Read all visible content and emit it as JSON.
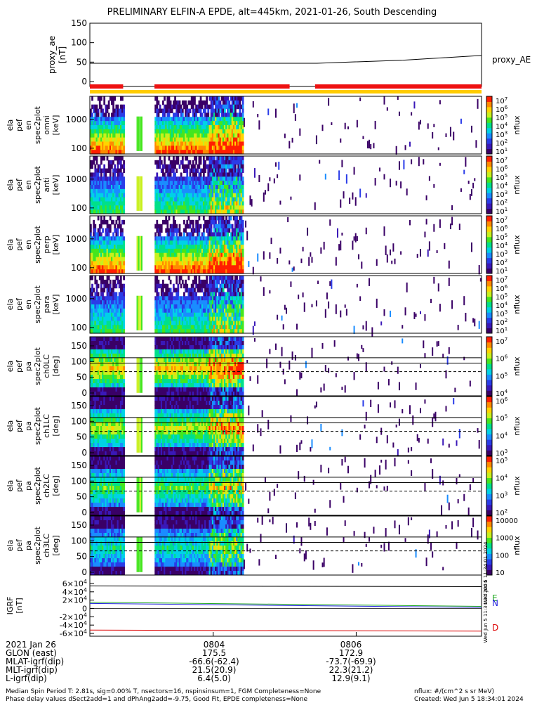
{
  "title": "PRELIMINARY ELFIN-A EPDE, alt=445km, 2021-01-26, South Descending",
  "proxy_panel": {
    "ylabel": "proxy_ae\n[nT]",
    "series_name": "proxy_AE",
    "yticks": [
      "150",
      "100",
      "50",
      "0"
    ]
  },
  "spectrogram_panels": [
    {
      "ylabel": "ela\npef\nen\nspec2plot\nomni\n[keV]",
      "yticks": [
        "1000",
        "100"
      ],
      "cbar_label": "nflux",
      "cbar_ticks": [
        "10^7",
        "10^6",
        "10^5",
        "10^4",
        "10^3",
        "10^2",
        "10^1"
      ]
    },
    {
      "ylabel": "ela\npef\nen\nspec2plot\nanti\n[keV]",
      "yticks": [
        "1000",
        "100"
      ],
      "cbar_label": "nflux",
      "cbar_ticks": [
        "10^7",
        "10^6",
        "10^5",
        "10^4",
        "10^3",
        "10^2",
        "10^1"
      ]
    },
    {
      "ylabel": "ela\npef\nen\nspec2plot\nperp\n[keV]",
      "yticks": [
        "1000",
        "100"
      ],
      "cbar_label": "nflux",
      "cbar_ticks": [
        "10^7",
        "10^6",
        "10^5",
        "10^4",
        "10^3",
        "10^2",
        "10^1"
      ]
    },
    {
      "ylabel": "ela\npef\nen\nspec2plot\npara\n[keV]",
      "yticks": [
        "1000",
        "100"
      ],
      "cbar_label": "nflux",
      "cbar_ticks": [
        "10^7",
        "10^6",
        "10^5",
        "10^4",
        "10^3",
        "10^2",
        "10^1"
      ]
    }
  ],
  "pitch_panels": [
    {
      "ylabel": "ela\npef\npa\nspec2plot\nch0LC\n[deg]",
      "yticks": [
        "150",
        "100",
        "50",
        "0"
      ],
      "cbar_label": "nflux",
      "cbar_ticks": [
        "10^7",
        "10^6",
        "10^5",
        "10^4"
      ]
    },
    {
      "ylabel": "ela\npef\npa\nspec2plot\nch1LC\n[deg]",
      "yticks": [
        "150",
        "100",
        "50",
        "0"
      ],
      "cbar_label": "nflux",
      "cbar_ticks": [
        "10^6",
        "10^5",
        "10^4",
        "10^3"
      ]
    },
    {
      "ylabel": "ela\npef\npa\nspec2plot\nch2LC\n[deg]",
      "yticks": [
        "150",
        "100",
        "50",
        "0"
      ],
      "cbar_label": "nflux",
      "cbar_ticks": [
        "10^5",
        "10^4",
        "10^3",
        "10^2"
      ]
    },
    {
      "ylabel": "ela\npef\npa\nspec2plot\nch3LC\n[deg]",
      "yticks": [
        "150",
        "100",
        "50",
        "0"
      ],
      "cbar_label": "nflux",
      "cbar_ticks": [
        "10000",
        "1000",
        "100",
        "10"
      ]
    }
  ],
  "igrf_panel": {
    "ylabel": "IGRF\n[nT]",
    "yticks": [
      "6×10^4",
      "4×10^4",
      "2×10^4",
      "0",
      "-2×10^4",
      "-4×10^4",
      "-6×10^4"
    ],
    "labels": [
      {
        "text": "E",
        "color": "#22aa22"
      },
      {
        "text": "N",
        "color": "#2222dd"
      },
      {
        "text": "D",
        "color": "#dd0000"
      }
    ]
  },
  "side_stamp": "Wed Jun  5 11:34:01 2024",
  "x_axis": {
    "ticks": [
      "0804",
      "0806"
    ],
    "rows": [
      {
        "label": "2021 Jan 26",
        "values": [
          "",
          ""
        ]
      },
      {
        "label": "GLON (east)",
        "values": [
          "175.5",
          "172.9"
        ]
      },
      {
        "label": "MLAT-igrf(dip)",
        "values": [
          "-66.6(-62.4)",
          "-73.7(-69.9)"
        ]
      },
      {
        "label": "MLT-igrf(dip)",
        "values": [
          "21.5(20.9)",
          "22.3(21.2)"
        ]
      },
      {
        "label": "L-igrf(dip)",
        "values": [
          "6.4(5.0)",
          "12.9(9.1)"
        ]
      }
    ]
  },
  "footer": {
    "left1": "Median Spin Period T: 2.81s, sig=0.00% T, nsectors=16, nspinsinsum=1, FGM Completeness=None",
    "left2": "Phase delay values dSect2add=1 and dPhAng2add=-9.75, Good Fit, EPDE completeness=None",
    "right1": "nflux: #/(cm^2 s sr MeV)",
    "right2": "Created: Wed Jun  5 18:34:01 2024"
  },
  "colors": {
    "status_red": "#ee1111",
    "status_yellow": "#ffcc00",
    "igrf_e": "#22aa22",
    "igrf_n": "#2222dd",
    "igrf_d": "#dd0000"
  }
}
